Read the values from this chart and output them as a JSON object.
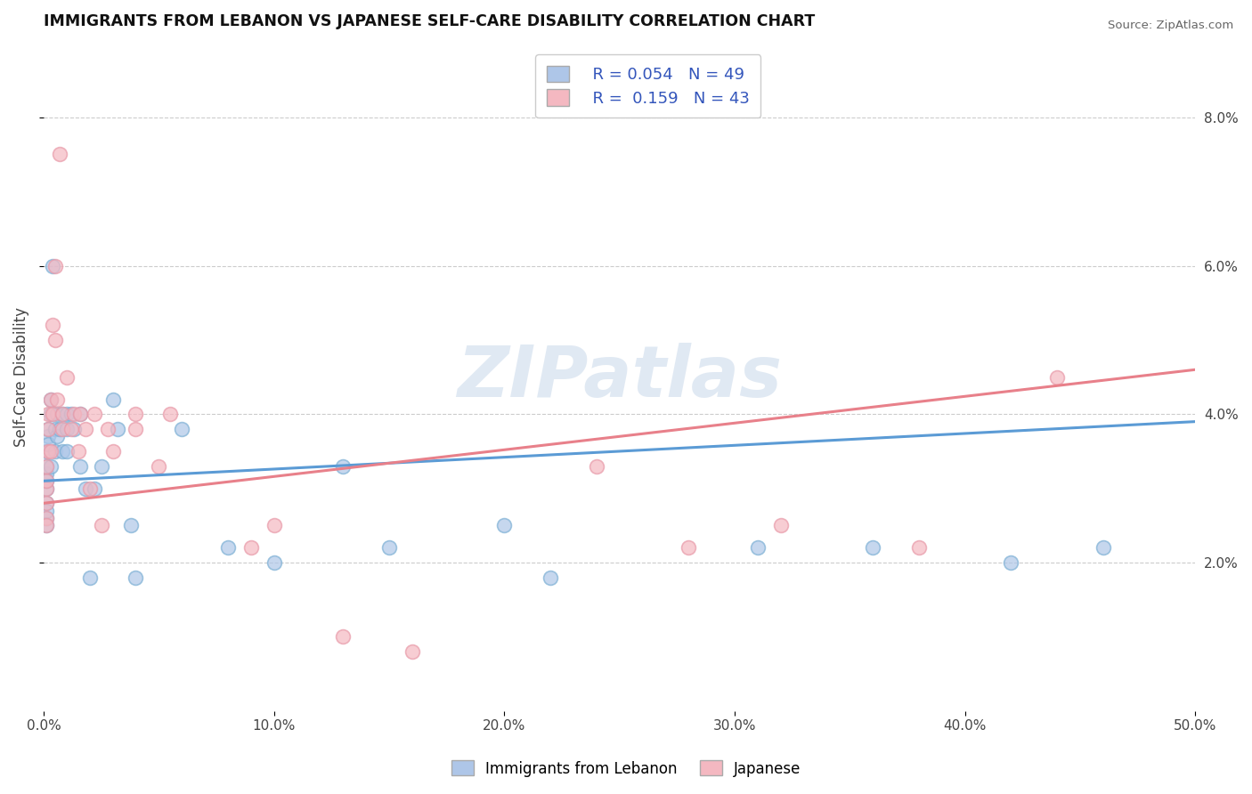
{
  "title": "IMMIGRANTS FROM LEBANON VS JAPANESE SELF-CARE DISABILITY CORRELATION CHART",
  "source": "Source: ZipAtlas.com",
  "ylabel": "Self-Care Disability",
  "watermark": "ZIPatlas",
  "xlim": [
    0.0,
    0.5
  ],
  "ylim": [
    0.0,
    0.09
  ],
  "xticks": [
    0.0,
    0.1,
    0.2,
    0.3,
    0.4,
    0.5
  ],
  "yticks_right": [
    0.02,
    0.04,
    0.06,
    0.08
  ],
  "ytick_labels_right": [
    "2.0%",
    "4.0%",
    "6.0%",
    "8.0%"
  ],
  "xtick_labels": [
    "0.0%",
    "10.0%",
    "20.0%",
    "30.0%",
    "40.0%",
    "50.0%"
  ],
  "R_lebanon": 0.054,
  "N_lebanon": 49,
  "R_japanese": 0.159,
  "N_japanese": 43,
  "scatter_lebanon": [
    [
      0.001,
      0.032
    ],
    [
      0.001,
      0.03
    ],
    [
      0.001,
      0.035
    ],
    [
      0.001,
      0.028
    ],
    [
      0.001,
      0.031
    ],
    [
      0.001,
      0.026
    ],
    [
      0.001,
      0.027
    ],
    [
      0.001,
      0.033
    ],
    [
      0.001,
      0.025
    ],
    [
      0.002,
      0.037
    ],
    [
      0.002,
      0.038
    ],
    [
      0.002,
      0.036
    ],
    [
      0.003,
      0.04
    ],
    [
      0.003,
      0.033
    ],
    [
      0.003,
      0.042
    ],
    [
      0.004,
      0.06
    ],
    [
      0.005,
      0.038
    ],
    [
      0.005,
      0.035
    ],
    [
      0.006,
      0.04
    ],
    [
      0.006,
      0.037
    ],
    [
      0.007,
      0.038
    ],
    [
      0.008,
      0.04
    ],
    [
      0.008,
      0.035
    ],
    [
      0.01,
      0.038
    ],
    [
      0.01,
      0.04
    ],
    [
      0.01,
      0.035
    ],
    [
      0.012,
      0.04
    ],
    [
      0.013,
      0.038
    ],
    [
      0.016,
      0.033
    ],
    [
      0.016,
      0.04
    ],
    [
      0.018,
      0.03
    ],
    [
      0.02,
      0.018
    ],
    [
      0.022,
      0.03
    ],
    [
      0.025,
      0.033
    ],
    [
      0.03,
      0.042
    ],
    [
      0.032,
      0.038
    ],
    [
      0.038,
      0.025
    ],
    [
      0.04,
      0.018
    ],
    [
      0.06,
      0.038
    ],
    [
      0.08,
      0.022
    ],
    [
      0.1,
      0.02
    ],
    [
      0.13,
      0.033
    ],
    [
      0.15,
      0.022
    ],
    [
      0.2,
      0.025
    ],
    [
      0.22,
      0.018
    ],
    [
      0.31,
      0.022
    ],
    [
      0.36,
      0.022
    ],
    [
      0.42,
      0.02
    ],
    [
      0.46,
      0.022
    ]
  ],
  "scatter_japanese": [
    [
      0.001,
      0.03
    ],
    [
      0.001,
      0.028
    ],
    [
      0.001,
      0.031
    ],
    [
      0.001,
      0.026
    ],
    [
      0.001,
      0.033
    ],
    [
      0.001,
      0.025
    ],
    [
      0.002,
      0.035
    ],
    [
      0.002,
      0.038
    ],
    [
      0.002,
      0.04
    ],
    [
      0.003,
      0.042
    ],
    [
      0.003,
      0.035
    ],
    [
      0.004,
      0.052
    ],
    [
      0.004,
      0.04
    ],
    [
      0.005,
      0.06
    ],
    [
      0.005,
      0.05
    ],
    [
      0.006,
      0.042
    ],
    [
      0.007,
      0.075
    ],
    [
      0.008,
      0.04
    ],
    [
      0.008,
      0.038
    ],
    [
      0.01,
      0.045
    ],
    [
      0.012,
      0.038
    ],
    [
      0.013,
      0.04
    ],
    [
      0.015,
      0.035
    ],
    [
      0.016,
      0.04
    ],
    [
      0.018,
      0.038
    ],
    [
      0.02,
      0.03
    ],
    [
      0.022,
      0.04
    ],
    [
      0.025,
      0.025
    ],
    [
      0.028,
      0.038
    ],
    [
      0.03,
      0.035
    ],
    [
      0.04,
      0.04
    ],
    [
      0.04,
      0.038
    ],
    [
      0.05,
      0.033
    ],
    [
      0.055,
      0.04
    ],
    [
      0.09,
      0.022
    ],
    [
      0.1,
      0.025
    ],
    [
      0.13,
      0.01
    ],
    [
      0.16,
      0.008
    ],
    [
      0.24,
      0.033
    ],
    [
      0.28,
      0.022
    ],
    [
      0.32,
      0.025
    ],
    [
      0.38,
      0.022
    ],
    [
      0.44,
      0.045
    ]
  ],
  "line_color_lebanon": "#5b9bd5",
  "line_color_japanese": "#e8808a",
  "scatter_color_lebanon": "#aec6e8",
  "scatter_color_japanese": "#f4b8c1",
  "scatter_edge_lebanon": "#7bafd4",
  "scatter_edge_japanese": "#e899a8",
  "background_color": "#ffffff",
  "grid_color": "#cccccc"
}
